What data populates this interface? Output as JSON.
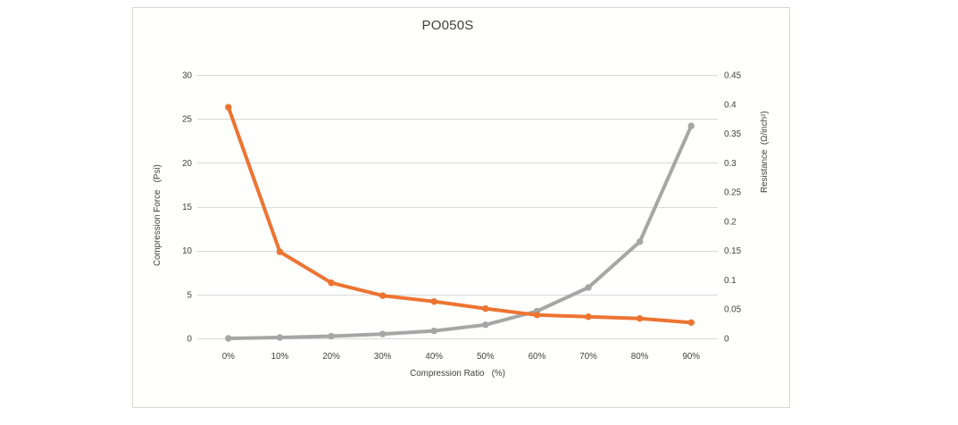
{
  "chart_data": {
    "type": "line",
    "title": "PO050S",
    "xlabel": "Compression Ratio   (%)",
    "ylabel_left": "Compression Force   (Psi)",
    "ylabel_right": "Resistance  (Ω/inch²)",
    "categories": [
      "0%",
      "10%",
      "20%",
      "30%",
      "40%",
      "50%",
      "60%",
      "70%",
      "80%",
      "90%"
    ],
    "series": [
      {
        "name": "Compression Force (Psi)",
        "axis": "left",
        "color": "#a6a6a6",
        "values": [
          0,
          0.1,
          0.25,
          0.5,
          0.85,
          1.55,
          3.1,
          5.8,
          11,
          24.2
        ]
      },
      {
        "name": "Resistance (Ω/inch²)",
        "axis": "right",
        "color": "#ed7431",
        "values": [
          0.395,
          0.148,
          0.095,
          0.073,
          0.063,
          0.051,
          0.04,
          0.037,
          0.034,
          0.027
        ]
      }
    ],
    "left_axis": {
      "min": 0,
      "max": 30,
      "step": 5,
      "tick_labels": [
        "0",
        "5",
        "10",
        "15",
        "20",
        "25",
        "30"
      ]
    },
    "right_axis": {
      "min": 0,
      "max": 0.45,
      "step": 0.05,
      "tick_labels": [
        "0",
        "0.05",
        "0.1",
        "0.15",
        "0.2",
        "0.25",
        "0.3",
        "0.35",
        "0.4",
        "0.45"
      ]
    },
    "grid": true,
    "legend": "none",
    "gridline_color": "#d9d9d9",
    "text_color": "#404040",
    "plot_background": "#fffffe"
  }
}
